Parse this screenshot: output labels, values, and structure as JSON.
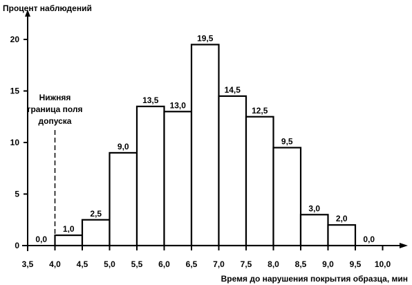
{
  "chart_data": {
    "type": "bar",
    "ylabel": "Процент наблюдений",
    "xlabel": "Время до нарушения покрытия образца, мин",
    "x_ticks": [
      "3,5",
      "4,0",
      "4,5",
      "5,0",
      "5,5",
      "6,0",
      "6,5",
      "7,0",
      "7,5",
      "8,0",
      "8,5",
      "9,0",
      "9,5",
      "10,0"
    ],
    "x_tick_values": [
      3.5,
      4.0,
      4.5,
      5.0,
      5.5,
      6.0,
      6.5,
      7.0,
      7.5,
      8.0,
      8.5,
      9.0,
      9.5,
      10.0
    ],
    "y_ticks": [
      "0",
      "5",
      "10",
      "15",
      "20"
    ],
    "y_tick_values": [
      0,
      5,
      10,
      15,
      20
    ],
    "xlim": [
      3.5,
      10.0
    ],
    "ylim": [
      0,
      22
    ],
    "bins": [
      {
        "from": 3.5,
        "to": 4.0,
        "value": 0.0,
        "label": "0,0"
      },
      {
        "from": 4.0,
        "to": 4.5,
        "value": 1.0,
        "label": "1,0"
      },
      {
        "from": 4.5,
        "to": 5.0,
        "value": 2.5,
        "label": "2,5"
      },
      {
        "from": 5.0,
        "to": 5.5,
        "value": 9.0,
        "label": "9,0"
      },
      {
        "from": 5.5,
        "to": 6.0,
        "value": 13.5,
        "label": "13,5"
      },
      {
        "from": 6.0,
        "to": 6.5,
        "value": 13.0,
        "label": "13,0"
      },
      {
        "from": 6.5,
        "to": 7.0,
        "value": 19.5,
        "label": "19,5"
      },
      {
        "from": 7.0,
        "to": 7.5,
        "value": 14.5,
        "label": "14,5"
      },
      {
        "from": 7.5,
        "to": 8.0,
        "value": 12.5,
        "label": "12,5"
      },
      {
        "from": 8.0,
        "to": 8.5,
        "value": 9.5,
        "label": "9,5"
      },
      {
        "from": 8.5,
        "to": 9.0,
        "value": 3.0,
        "label": "3,0"
      },
      {
        "from": 9.0,
        "to": 9.5,
        "value": 2.0,
        "label": "2,0"
      },
      {
        "from": 9.5,
        "to": 10.0,
        "value": 0.0,
        "label": "0,0"
      }
    ],
    "annotation": {
      "lines": [
        "Нижняя",
        "граница поля",
        "допуска"
      ],
      "x": 4.0
    }
  }
}
